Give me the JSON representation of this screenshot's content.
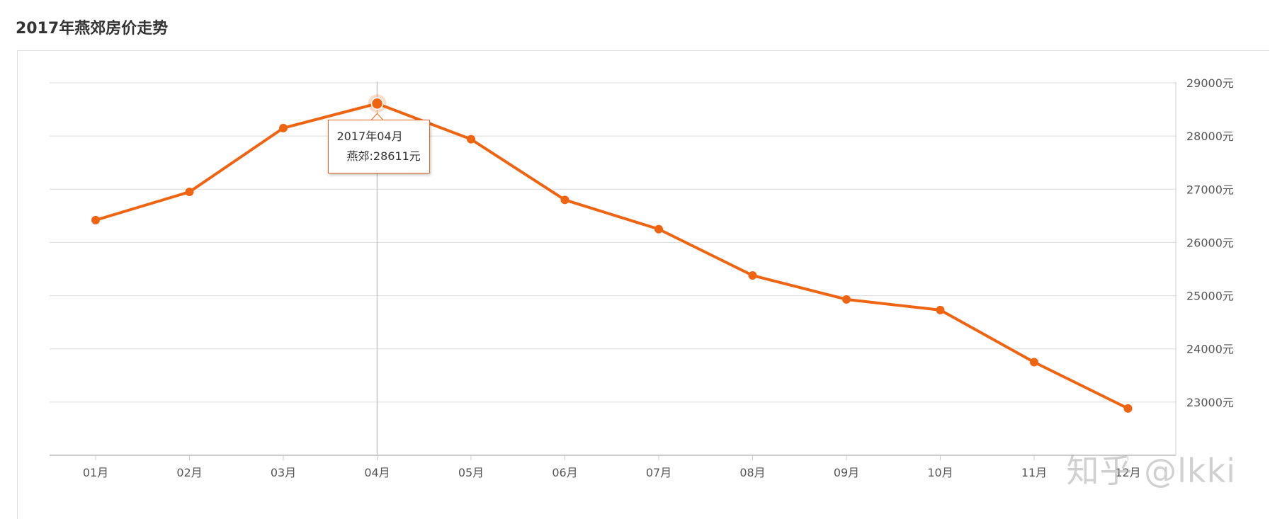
{
  "page": {
    "title": "2017年燕郊房价走势",
    "watermark": "知乎 @lkki"
  },
  "chart_data": {
    "type": "line",
    "categories": [
      "01月",
      "02月",
      "03月",
      "04月",
      "05月",
      "06月",
      "07月",
      "08月",
      "09月",
      "10月",
      "11月",
      "12月"
    ],
    "series": [
      {
        "name": "燕郊",
        "color": "#ee6411",
        "values": [
          26420,
          26950,
          28150,
          28611,
          27940,
          26800,
          26250,
          25380,
          24930,
          24730,
          23750,
          22880
        ]
      }
    ],
    "y_axis": {
      "position": "right",
      "ticks": [
        23000,
        24000,
        25000,
        26000,
        27000,
        28000,
        29000
      ],
      "tick_labels": [
        "23000元",
        "24000元",
        "25000元",
        "26000元",
        "27000元",
        "28000元",
        "29000元"
      ],
      "min": 22000,
      "max": 29000
    },
    "grid": true,
    "legend": "none",
    "tooltip": {
      "category_index": 3,
      "title": "2017年04月",
      "series_label": "燕郊:",
      "value_text": "28611元"
    }
  }
}
